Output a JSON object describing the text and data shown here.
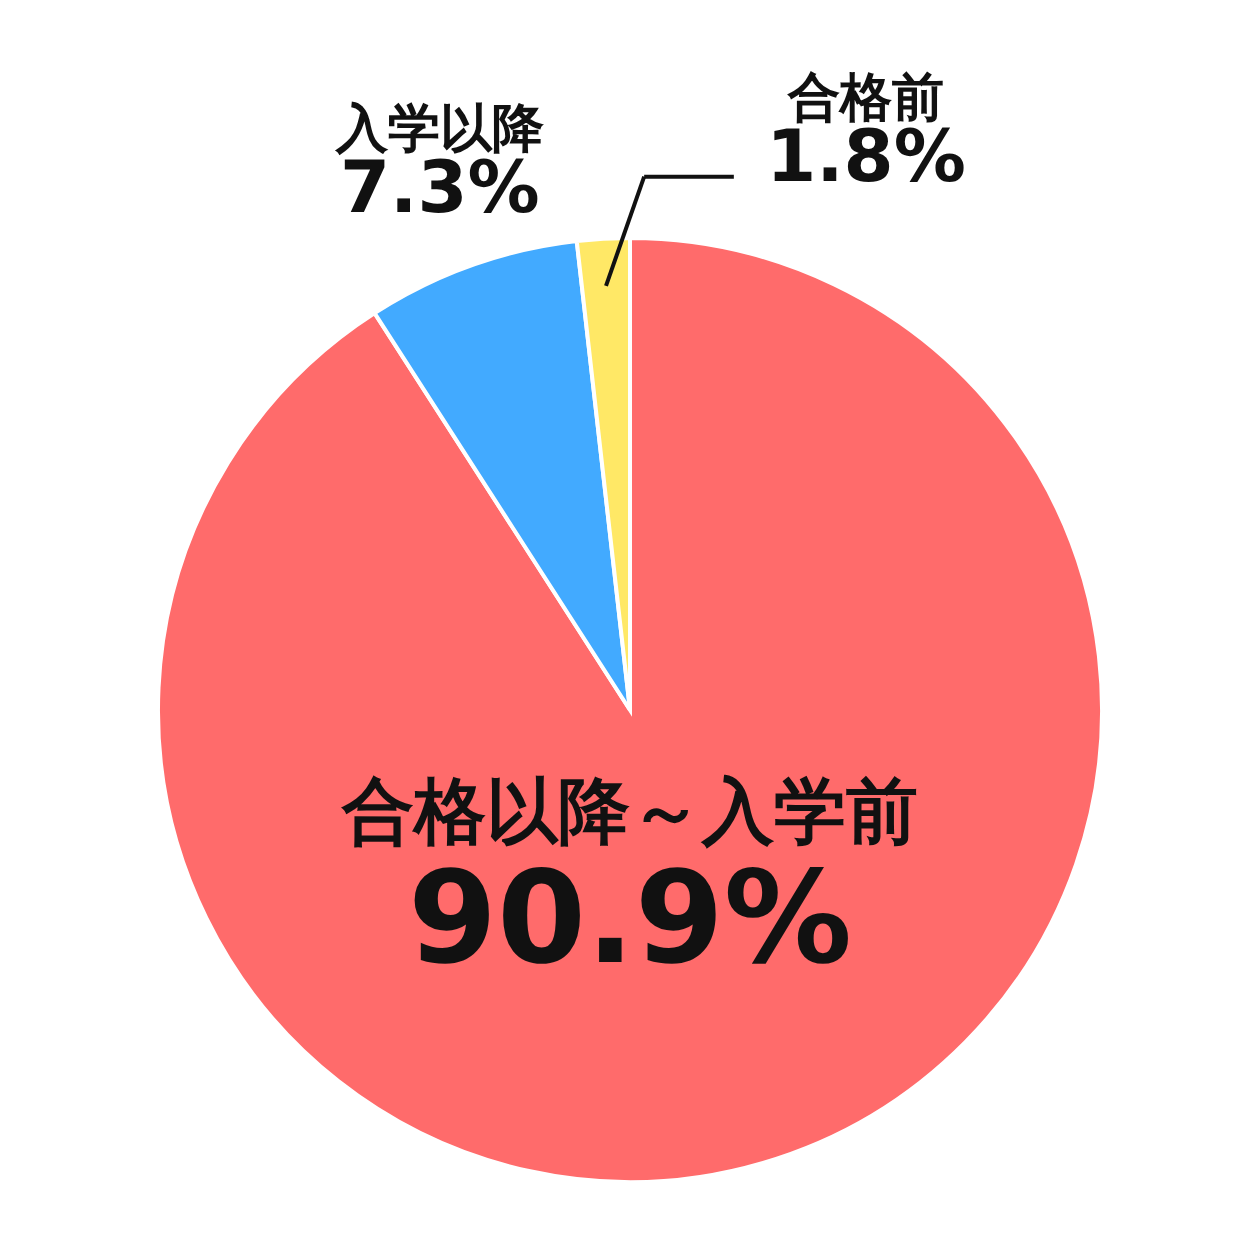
{
  "chart_data": {
    "type": "pie",
    "categories": [
      "合格以降～入学前",
      "入学以降",
      "合格前"
    ],
    "values": [
      90.9,
      7.3,
      1.8
    ],
    "value_labels": [
      "90.9%",
      "7.3%",
      "1.8%"
    ],
    "colors": [
      "#ff6b6b",
      "#42aaff",
      "#ffe866"
    ]
  }
}
